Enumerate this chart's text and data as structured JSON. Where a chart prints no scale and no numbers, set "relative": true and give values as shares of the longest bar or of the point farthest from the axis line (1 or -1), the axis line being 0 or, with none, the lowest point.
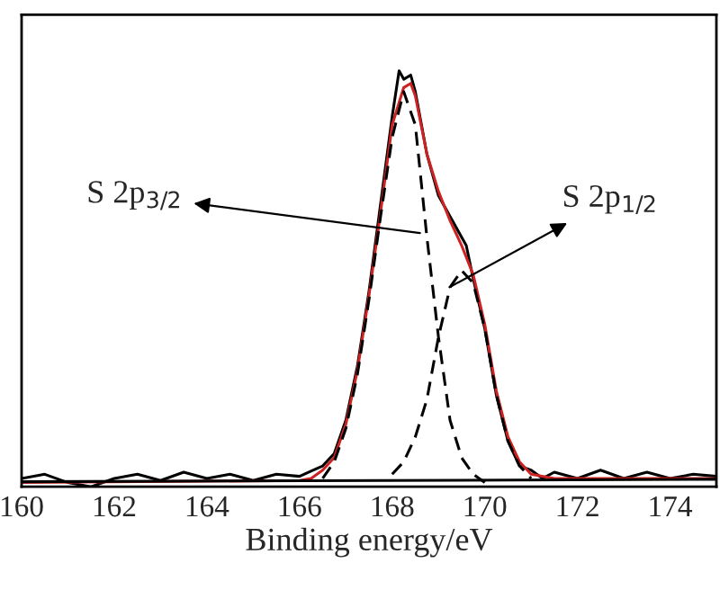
{
  "chart_data": {
    "type": "line",
    "xlabel": "Binding energy/eV",
    "relative": true,
    "xlim": [
      160,
      175
    ],
    "xticks": [
      160,
      162,
      164,
      166,
      168,
      170,
      172,
      174
    ],
    "tick_labels": "x",
    "grid": false,
    "legend": false,
    "marker": "none",
    "series": [
      {
        "color": "#000000",
        "line_style": "solid",
        "x": [
          160,
          160.5,
          161,
          161.5,
          162,
          162.5,
          163,
          163.5,
          164,
          164.5,
          165,
          165.5,
          166,
          166.3,
          166.5,
          166.75,
          167,
          167.25,
          167.5,
          167.75,
          168,
          168.15,
          168.25,
          168.4,
          168.5,
          168.75,
          169,
          169.2,
          169.4,
          169.6,
          169.75,
          170,
          170.25,
          170.5,
          170.75,
          171,
          171.25,
          171.5,
          172,
          172.5,
          173,
          173.5,
          174,
          174.5,
          175
        ],
        "values": [
          0.02,
          0.03,
          0.01,
          0.0,
          0.02,
          0.03,
          0.015,
          0.035,
          0.02,
          0.03,
          0.015,
          0.03,
          0.025,
          0.04,
          0.05,
          0.08,
          0.16,
          0.29,
          0.47,
          0.68,
          0.89,
          1.0,
          0.98,
          0.99,
          0.95,
          0.8,
          0.7,
          0.66,
          0.62,
          0.58,
          0.5,
          0.38,
          0.22,
          0.11,
          0.05,
          0.04,
          0.02,
          0.035,
          0.02,
          0.04,
          0.02,
          0.035,
          0.02,
          0.03,
          0.025
        ]
      },
      {
        "color": "#cc2222",
        "line_style": "solid",
        "x": [
          160,
          166,
          166.25,
          166.5,
          166.75,
          167,
          167.25,
          167.5,
          167.75,
          168,
          168.25,
          168.4,
          168.5,
          168.75,
          169,
          169.25,
          169.5,
          169.75,
          170,
          170.25,
          170.5,
          170.75,
          171,
          171.5,
          175
        ],
        "values": [
          0.01,
          0.015,
          0.02,
          0.04,
          0.07,
          0.15,
          0.28,
          0.46,
          0.66,
          0.87,
          0.96,
          0.97,
          0.94,
          0.8,
          0.71,
          0.64,
          0.58,
          0.51,
          0.39,
          0.23,
          0.12,
          0.06,
          0.03,
          0.02,
          0.02
        ]
      },
      {
        "color": "#000000",
        "line_style": "dashed",
        "x": [
          166.5,
          166.75,
          167,
          167.25,
          167.5,
          167.75,
          168,
          168.25,
          168.5,
          168.75,
          169,
          169.25,
          169.5,
          169.75,
          170
        ],
        "values": [
          0.02,
          0.06,
          0.14,
          0.27,
          0.45,
          0.65,
          0.84,
          0.95,
          0.87,
          0.6,
          0.36,
          0.16,
          0.07,
          0.03,
          0.01
        ]
      },
      {
        "color": "#000000",
        "line_style": "dashed",
        "x": [
          168,
          168.25,
          168.5,
          168.75,
          169,
          169.25,
          169.5,
          169.75,
          170,
          170.25,
          170.5,
          170.75,
          171
        ],
        "values": [
          0.03,
          0.06,
          0.12,
          0.21,
          0.36,
          0.48,
          0.52,
          0.49,
          0.38,
          0.22,
          0.11,
          0.05,
          0.02
        ]
      },
      {
        "color": "#000000",
        "line_style": "solid",
        "x": [
          160,
          175
        ],
        "values": [
          0.012,
          0.018
        ]
      }
    ],
    "annotations": [
      {
        "text": "S 2p$_{3/2}$",
        "x": 168.6,
        "y": 0.61
      },
      {
        "text": "S 2p$_{1/2}$",
        "x": 169.24,
        "y": 0.48
      }
    ]
  }
}
